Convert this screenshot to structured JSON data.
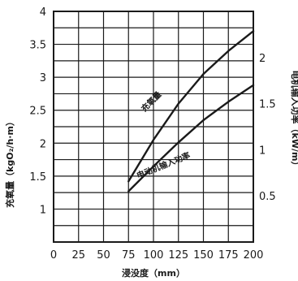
{
  "chart_data": {
    "type": "line",
    "title": "",
    "xlabel": "浸没度（mm）",
    "ylabel_left": "充氧量（kgO₂/h·m）",
    "ylabel_right": "电机输入功率（kW/m）",
    "xlim": [
      0,
      200
    ],
    "xticks": [
      0,
      25,
      50,
      75,
      100,
      125,
      150,
      175,
      200
    ],
    "ylim_left": [
      0.5,
      4
    ],
    "yticks_left": [
      1,
      1.5,
      2,
      2.5,
      3,
      3.5,
      4
    ],
    "ylim_right": [
      0,
      2.5
    ],
    "yticks_right": [
      0.5,
      1,
      1.5,
      2
    ],
    "grid": true,
    "series": [
      {
        "name": "充氧量",
        "axis": "left",
        "x": [
          75,
          100,
          125,
          150,
          175,
          200
        ],
        "y": [
          1.42,
          2.05,
          2.6,
          3.05,
          3.4,
          3.7
        ]
      },
      {
        "name": "电动机输入功率",
        "axis": "right",
        "x": [
          75,
          100,
          125,
          150,
          175,
          200
        ],
        "y": [
          0.55,
          0.82,
          1.08,
          1.32,
          1.52,
          1.7
        ]
      }
    ]
  }
}
